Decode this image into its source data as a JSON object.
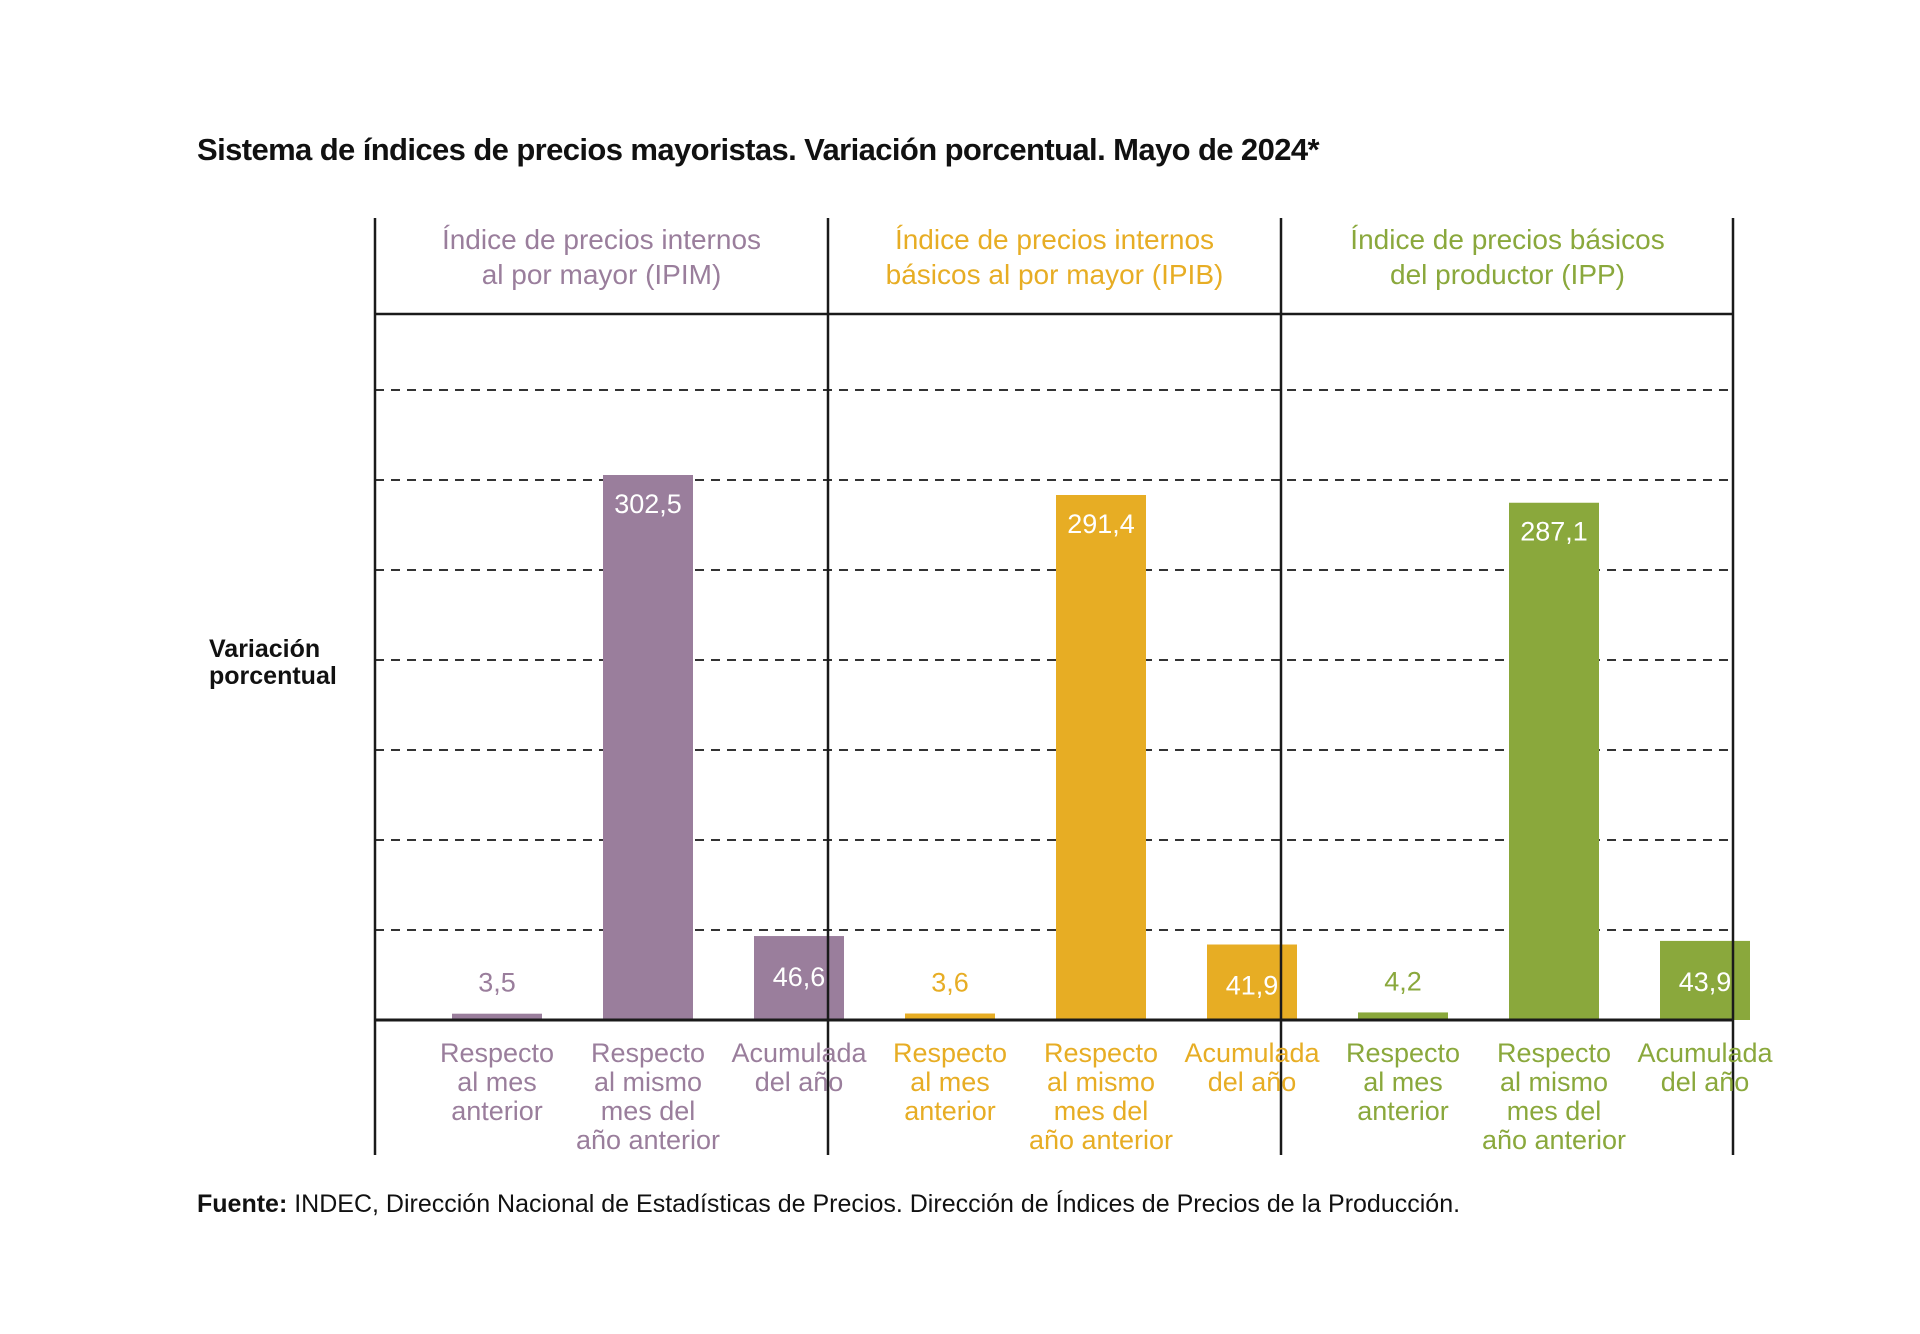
{
  "title": "Sistema de índices de precios mayoristas. Variación porcentual. Mayo de 2024*",
  "ylabel": [
    "Variación",
    "porcentual"
  ],
  "source": {
    "bold": "Fuente:",
    "text": " INDEC, Dirección Nacional de Estadísticas de Precios. Dirección de Índices de Precios de la Producción."
  },
  "chart_data": {
    "type": "bar",
    "title": "Sistema de índices de precios mayoristas. Variación porcentual. Mayo de 2024*",
    "ylabel": "Variación porcentual",
    "ylim": [
      0,
      360
    ],
    "grid": true,
    "groups": [
      {
        "name": "Índice de precios internos al por mayor (IPIM)",
        "name_lines": [
          "Índice de precios internos",
          "al por mayor (IPIM)"
        ],
        "color": "#9a7e9c",
        "categories": [
          [
            "Respecto",
            "al mes",
            "anterior"
          ],
          [
            "Respecto",
            "al mismo",
            "mes del",
            "año anterior"
          ],
          [
            "Acumulada",
            "del año"
          ]
        ],
        "values": [
          3.5,
          302.5,
          46.6
        ],
        "labels": [
          "3,5",
          "302,5",
          "46,6"
        ]
      },
      {
        "name": "Índice de precios internos básicos al por mayor (IPIB)",
        "name_lines": [
          "Índice de precios internos",
          "básicos al por mayor (IPIB)"
        ],
        "color": "#e7ad24",
        "categories": [
          [
            "Respecto",
            "al mes",
            "anterior"
          ],
          [
            "Respecto",
            "al mismo",
            "mes del",
            "año anterior"
          ],
          [
            "Acumulada",
            "del año"
          ]
        ],
        "values": [
          3.6,
          291.4,
          41.9
        ],
        "labels": [
          "3,6",
          "291,4",
          "41,9"
        ]
      },
      {
        "name": "Índice de precios básicos del productor (IPP)",
        "name_lines": [
          "Índice de precios básicos",
          "del productor (IPP)"
        ],
        "color": "#8aa83c",
        "categories": [
          [
            "Respecto",
            "al mes",
            "anterior"
          ],
          [
            "Respecto",
            "al mismo",
            "mes del",
            "año anterior"
          ],
          [
            "Acumulada",
            "del año"
          ]
        ],
        "values": [
          4.2,
          287.1,
          43.9
        ],
        "labels": [
          "4,2",
          "287,1",
          "43,9"
        ]
      }
    ]
  }
}
